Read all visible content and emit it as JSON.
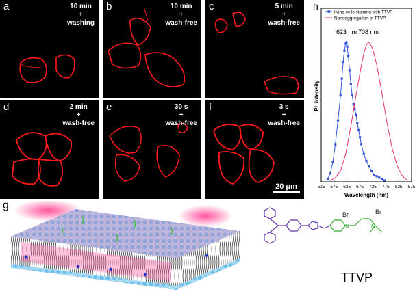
{
  "panels": [
    {
      "label": "a",
      "time": "10 min",
      "plus": "+",
      "wash": "washing"
    },
    {
      "label": "b",
      "time": "10 min",
      "plus": "+",
      "wash": "wash-free"
    },
    {
      "label": "c",
      "time": "5 min",
      "plus": "+",
      "wash": "wash-free"
    },
    {
      "label": "d",
      "time": "2 min",
      "plus": "+",
      "wash": "wash-free"
    },
    {
      "label": "e",
      "time": "30 s",
      "plus": "+",
      "wash": "wash-free"
    },
    {
      "label": "f",
      "time": "3 s",
      "plus": "+",
      "wash": "wash-free"
    }
  ],
  "scale_bar": "20 μm",
  "panel_g_label": "g",
  "molecule_name": "TTVP",
  "molecule_text": {
    "br1": "Br",
    "br2": "Br",
    "charge": "−",
    "nplus": "N",
    "n2": "N"
  },
  "colors": {
    "cell_red": "#ff1a1a",
    "cell_ttvp_series": "#3355dd",
    "aggregate_series": "#e8306a",
    "membrane_blue": "#88ccee",
    "probe_green": "#44bb44",
    "structure_purple": "#6633aa",
    "structure_green": "#33aa33"
  },
  "chart_data": {
    "type": "line",
    "panel_label": "h",
    "xlabel": "Wavelength (nm)",
    "ylabel": "PL intensity",
    "xlim": [
      525,
      875
    ],
    "ylim": [
      0,
      1
    ],
    "xticks": [
      525,
      575,
      625,
      675,
      725,
      775,
      825,
      875
    ],
    "peak_labels": [
      {
        "x": 623,
        "text": "623 nm"
      },
      {
        "x": 708,
        "text": "708 nm"
      }
    ],
    "legend_placement": "top",
    "series": [
      {
        "name": "living cells staining with TTVP",
        "marker": "square",
        "color": "#3355dd",
        "x": [
          550,
          560,
          570,
          580,
          590,
          600,
          605,
          610,
          615,
          620,
          623,
          626,
          630,
          635,
          640,
          645,
          650,
          655,
          660,
          665,
          670,
          675,
          680,
          690,
          700,
          710,
          720,
          730,
          740,
          750,
          760,
          770
        ],
        "y": [
          0.02,
          0.06,
          0.14,
          0.27,
          0.44,
          0.62,
          0.74,
          0.86,
          0.94,
          0.99,
          1.0,
          0.97,
          0.9,
          0.8,
          0.7,
          0.62,
          0.56,
          0.52,
          0.48,
          0.42,
          0.37,
          0.32,
          0.27,
          0.2,
          0.15,
          0.11,
          0.08,
          0.05,
          0.04,
          0.03,
          0.02,
          0.01
        ]
      },
      {
        "name": "Nanoaggregation of TTVP",
        "marker": "none",
        "color": "#e8306a",
        "x": [
          560,
          580,
          600,
          620,
          640,
          660,
          680,
          690,
          700,
          708,
          715,
          725,
          740,
          760,
          780,
          800,
          820,
          840,
          860
        ],
        "y": [
          0.01,
          0.03,
          0.08,
          0.2,
          0.4,
          0.62,
          0.83,
          0.92,
          0.98,
          1.0,
          0.99,
          0.95,
          0.84,
          0.64,
          0.42,
          0.24,
          0.11,
          0.04,
          0.01
        ]
      }
    ]
  }
}
